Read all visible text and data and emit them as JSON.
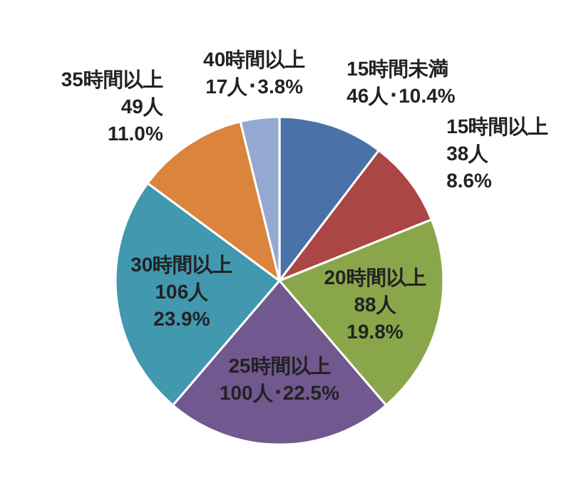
{
  "chart_data": {
    "type": "pie",
    "categories": [
      "15時間未満",
      "15時間以上",
      "20時間以上",
      "25時間以上",
      "30時間以上",
      "35時間以上",
      "40時間以上"
    ],
    "values": [
      46,
      38,
      88,
      100,
      106,
      49,
      17
    ],
    "value_labels": [
      "46人･10.4%",
      "38人\n8.6%",
      "88人\n19.8%",
      "100人･22.5%",
      "106人\n23.9%",
      "49人\n11.0%",
      "17人･3.8%"
    ],
    "colors": [
      "#4a72a8",
      "#aa4643",
      "#8aa64b",
      "#71588f",
      "#4198af",
      "#db843d",
      "#93a9cf"
    ]
  }
}
